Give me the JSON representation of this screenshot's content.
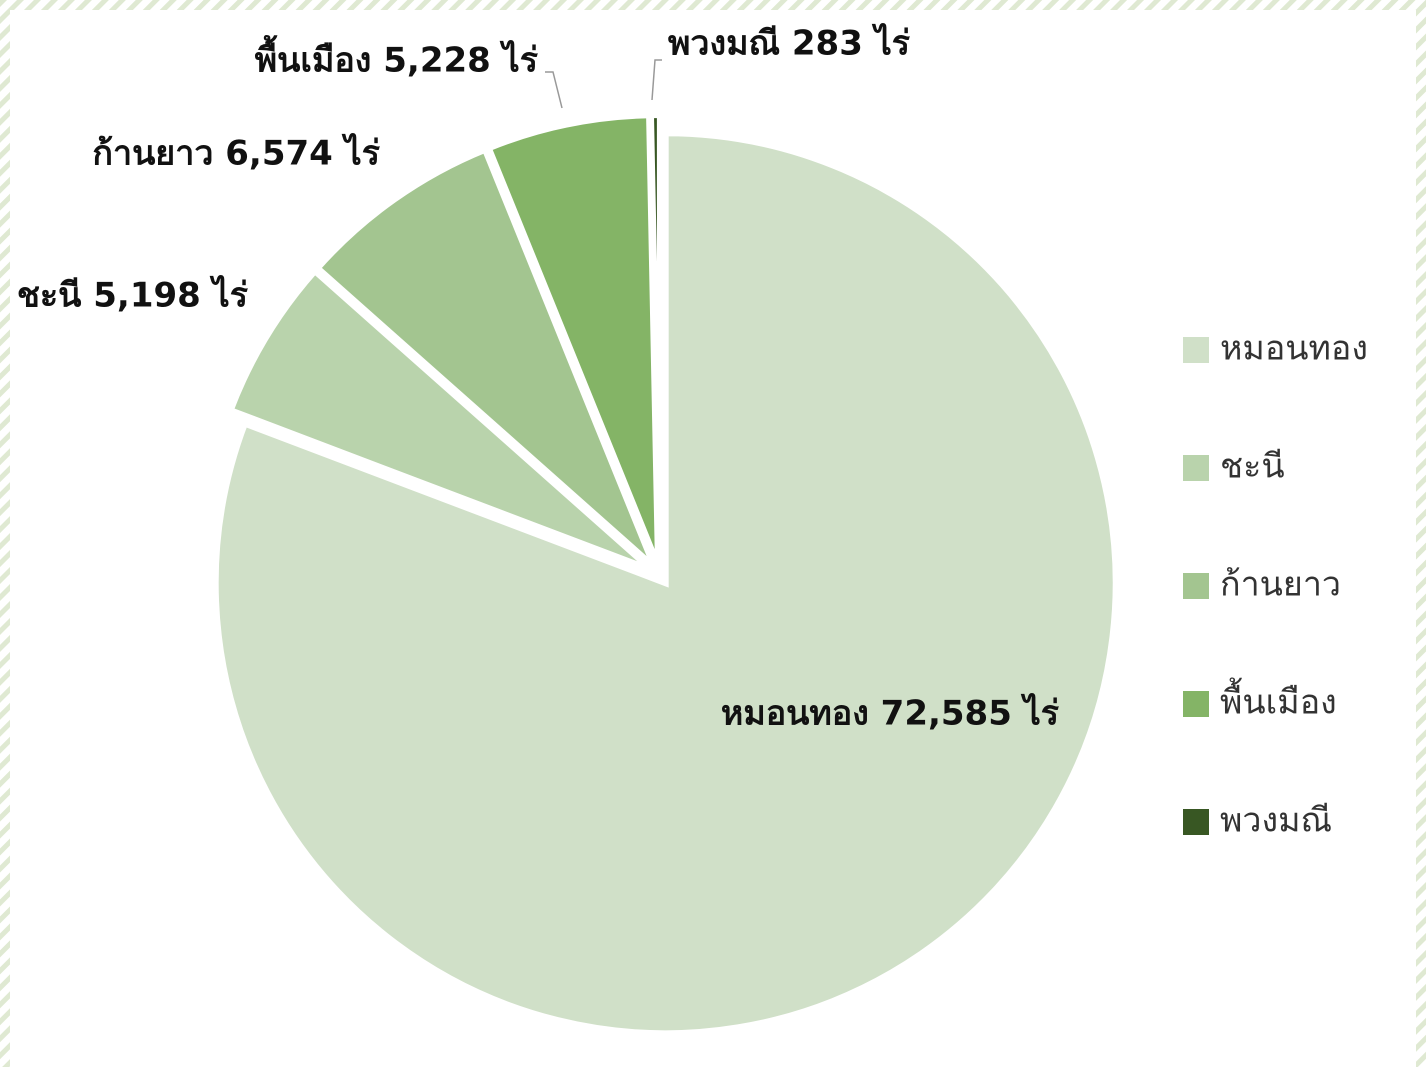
{
  "chart_data": {
    "type": "pie",
    "categories": [
      "หมอนทอง",
      "ชะนี",
      "ก้านยาว",
      "พื้นเมือง",
      "พวงมณี"
    ],
    "values": [
      72585,
      5198,
      6574,
      5228,
      283
    ],
    "value_labels": [
      "หมอนทอง 72,585 ไร่",
      "ชะนี 5,198 ไร่",
      "ก้านยาว 6,574 ไร่",
      "พื้นเมือง 5,228 ไร่",
      "พวงมณี 283 ไร่"
    ],
    "colors": [
      "#d0e0c8",
      "#b9d3ac",
      "#a3c590",
      "#84b466",
      "#385723"
    ],
    "legend": "right"
  }
}
